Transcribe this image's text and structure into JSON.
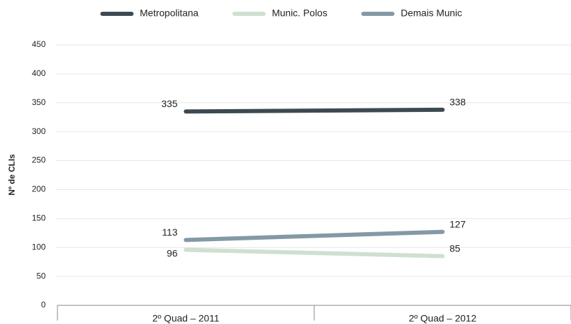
{
  "chart_data": {
    "type": "line",
    "y_label": "Nº de CLIs",
    "categories": [
      "2º Quad – 2011",
      "2º Quad – 2012"
    ],
    "series": [
      {
        "name": "Metropolitana",
        "color": "#3d4a52",
        "values": [
          335,
          338
        ]
      },
      {
        "name": "Munic. Polos",
        "color": "#cfe0d0",
        "values": [
          96,
          85
        ]
      },
      {
        "name": "Demais Munic",
        "color": "#8499a6",
        "values": [
          113,
          127
        ]
      }
    ],
    "ylim": [
      0,
      450
    ],
    "yticks": [
      0,
      50,
      100,
      150,
      200,
      250,
      300,
      350,
      400,
      450
    ],
    "grid": true,
    "legend": "top"
  }
}
